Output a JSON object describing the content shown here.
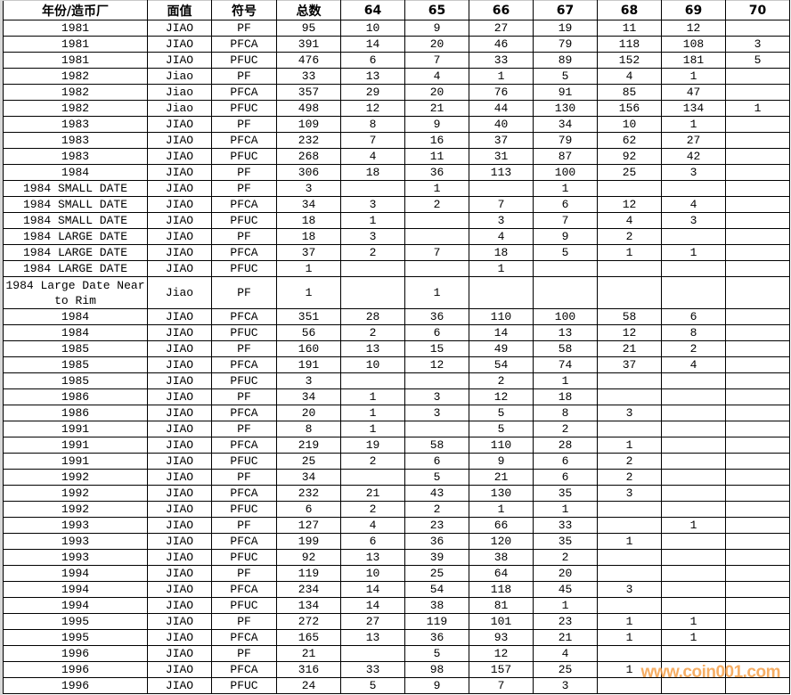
{
  "headers": [
    "年份/造币厂",
    "面值",
    "符号",
    "总数",
    "64",
    "65",
    "66",
    "67",
    "68",
    "69",
    "70"
  ],
  "rows": [
    [
      "1981",
      "JIAO",
      "PF",
      "95",
      "10",
      "9",
      "27",
      "19",
      "11",
      "12",
      ""
    ],
    [
      "1981",
      "JIAO",
      "PFCA",
      "391",
      "14",
      "20",
      "46",
      "79",
      "118",
      "108",
      "3"
    ],
    [
      "1981",
      "JIAO",
      "PFUC",
      "476",
      "6",
      "7",
      "33",
      "89",
      "152",
      "181",
      "5"
    ],
    [
      "1982",
      "Jiao",
      "PF",
      "33",
      "13",
      "4",
      "1",
      "5",
      "4",
      "1",
      ""
    ],
    [
      "1982",
      "Jiao",
      "PFCA",
      "357",
      "29",
      "20",
      "76",
      "91",
      "85",
      "47",
      ""
    ],
    [
      "1982",
      "Jiao",
      "PFUC",
      "498",
      "12",
      "21",
      "44",
      "130",
      "156",
      "134",
      "1"
    ],
    [
      "1983",
      "JIAO",
      "PF",
      "109",
      "8",
      "9",
      "40",
      "34",
      "10",
      "1",
      ""
    ],
    [
      "1983",
      "JIAO",
      "PFCA",
      "232",
      "7",
      "16",
      "37",
      "79",
      "62",
      "27",
      ""
    ],
    [
      "1983",
      "JIAO",
      "PFUC",
      "268",
      "4",
      "11",
      "31",
      "87",
      "92",
      "42",
      ""
    ],
    [
      "1984",
      "JIAO",
      "PF",
      "306",
      "18",
      "36",
      "113",
      "100",
      "25",
      "3",
      ""
    ],
    [
      "1984 SMALL DATE",
      "JIAO",
      "PF",
      "3",
      "",
      "1",
      "",
      "1",
      "",
      "",
      ""
    ],
    [
      "1984 SMALL DATE",
      "JIAO",
      "PFCA",
      "34",
      "3",
      "2",
      "7",
      "6",
      "12",
      "4",
      ""
    ],
    [
      "1984 SMALL DATE",
      "JIAO",
      "PFUC",
      "18",
      "1",
      "",
      "3",
      "7",
      "4",
      "3",
      ""
    ],
    [
      "1984 LARGE DATE",
      "JIAO",
      "PF",
      "18",
      "3",
      "",
      "4",
      "9",
      "2",
      "",
      ""
    ],
    [
      "1984 LARGE DATE",
      "JIAO",
      "PFCA",
      "37",
      "2",
      "7",
      "18",
      "5",
      "1",
      "1",
      ""
    ],
    [
      "1984 LARGE DATE",
      "JIAO",
      "PFUC",
      "1",
      "",
      "",
      "1",
      "",
      "",
      "",
      ""
    ],
    [
      "1984 Large Date Near to Rim",
      "Jiao",
      "PF",
      "1",
      "",
      "1",
      "",
      "",
      "",
      "",
      ""
    ],
    [
      "1984",
      "JIAO",
      "PFCA",
      "351",
      "28",
      "36",
      "110",
      "100",
      "58",
      "6",
      ""
    ],
    [
      "1984",
      "JIAO",
      "PFUC",
      "56",
      "2",
      "6",
      "14",
      "13",
      "12",
      "8",
      ""
    ],
    [
      "1985",
      "JIAO",
      "PF",
      "160",
      "13",
      "15",
      "49",
      "58",
      "21",
      "2",
      ""
    ],
    [
      "1985",
      "JIAO",
      "PFCA",
      "191",
      "10",
      "12",
      "54",
      "74",
      "37",
      "4",
      ""
    ],
    [
      "1985",
      "JIAO",
      "PFUC",
      "3",
      "",
      "",
      "2",
      "1",
      "",
      "",
      ""
    ],
    [
      "1986",
      "JIAO",
      "PF",
      "34",
      "1",
      "3",
      "12",
      "18",
      "",
      "",
      ""
    ],
    [
      "1986",
      "JIAO",
      "PFCA",
      "20",
      "1",
      "3",
      "5",
      "8",
      "3",
      "",
      ""
    ],
    [
      "1991",
      "JIAO",
      "PF",
      "8",
      "1",
      "",
      "5",
      "2",
      "",
      "",
      ""
    ],
    [
      "1991",
      "JIAO",
      "PFCA",
      "219",
      "19",
      "58",
      "110",
      "28",
      "1",
      "",
      ""
    ],
    [
      "1991",
      "JIAO",
      "PFUC",
      "25",
      "2",
      "6",
      "9",
      "6",
      "2",
      "",
      ""
    ],
    [
      "1992",
      "JIAO",
      "PF",
      "34",
      "",
      "5",
      "21",
      "6",
      "2",
      "",
      ""
    ],
    [
      "1992",
      "JIAO",
      "PFCA",
      "232",
      "21",
      "43",
      "130",
      "35",
      "3",
      "",
      ""
    ],
    [
      "1992",
      "JIAO",
      "PFUC",
      "6",
      "2",
      "2",
      "1",
      "1",
      "",
      "",
      ""
    ],
    [
      "1993",
      "JIAO",
      "PF",
      "127",
      "4",
      "23",
      "66",
      "33",
      "",
      "1",
      ""
    ],
    [
      "1993",
      "JIAO",
      "PFCA",
      "199",
      "6",
      "36",
      "120",
      "35",
      "1",
      "",
      ""
    ],
    [
      "1993",
      "JIAO",
      "PFUC",
      "92",
      "13",
      "39",
      "38",
      "2",
      "",
      "",
      ""
    ],
    [
      "1994",
      "JIAO",
      "PF",
      "119",
      "10",
      "25",
      "64",
      "20",
      "",
      "",
      ""
    ],
    [
      "1994",
      "JIAO",
      "PFCA",
      "234",
      "14",
      "54",
      "118",
      "45",
      "3",
      "",
      ""
    ],
    [
      "1994",
      "JIAO",
      "PFUC",
      "134",
      "14",
      "38",
      "81",
      "1",
      "",
      "",
      ""
    ],
    [
      "1995",
      "JIAO",
      "PF",
      "272",
      "27",
      "119",
      "101",
      "23",
      "1",
      "1",
      ""
    ],
    [
      "1995",
      "JIAO",
      "PFCA",
      "165",
      "13",
      "36",
      "93",
      "21",
      "1",
      "1",
      ""
    ],
    [
      "1996",
      "JIAO",
      "PF",
      "21",
      "",
      "5",
      "12",
      "4",
      "",
      "",
      ""
    ],
    [
      "1996",
      "JIAO",
      "PFCA",
      "316",
      "33",
      "98",
      "157",
      "25",
      "1",
      "",
      ""
    ],
    [
      "1996",
      "JIAO",
      "PFUC",
      "24",
      "5",
      "9",
      "7",
      "3",
      "",
      "",
      ""
    ]
  ],
  "watermark": "www.coin001.com",
  "colors": {
    "watermark": "#f5a04a",
    "grid": "#000000"
  }
}
